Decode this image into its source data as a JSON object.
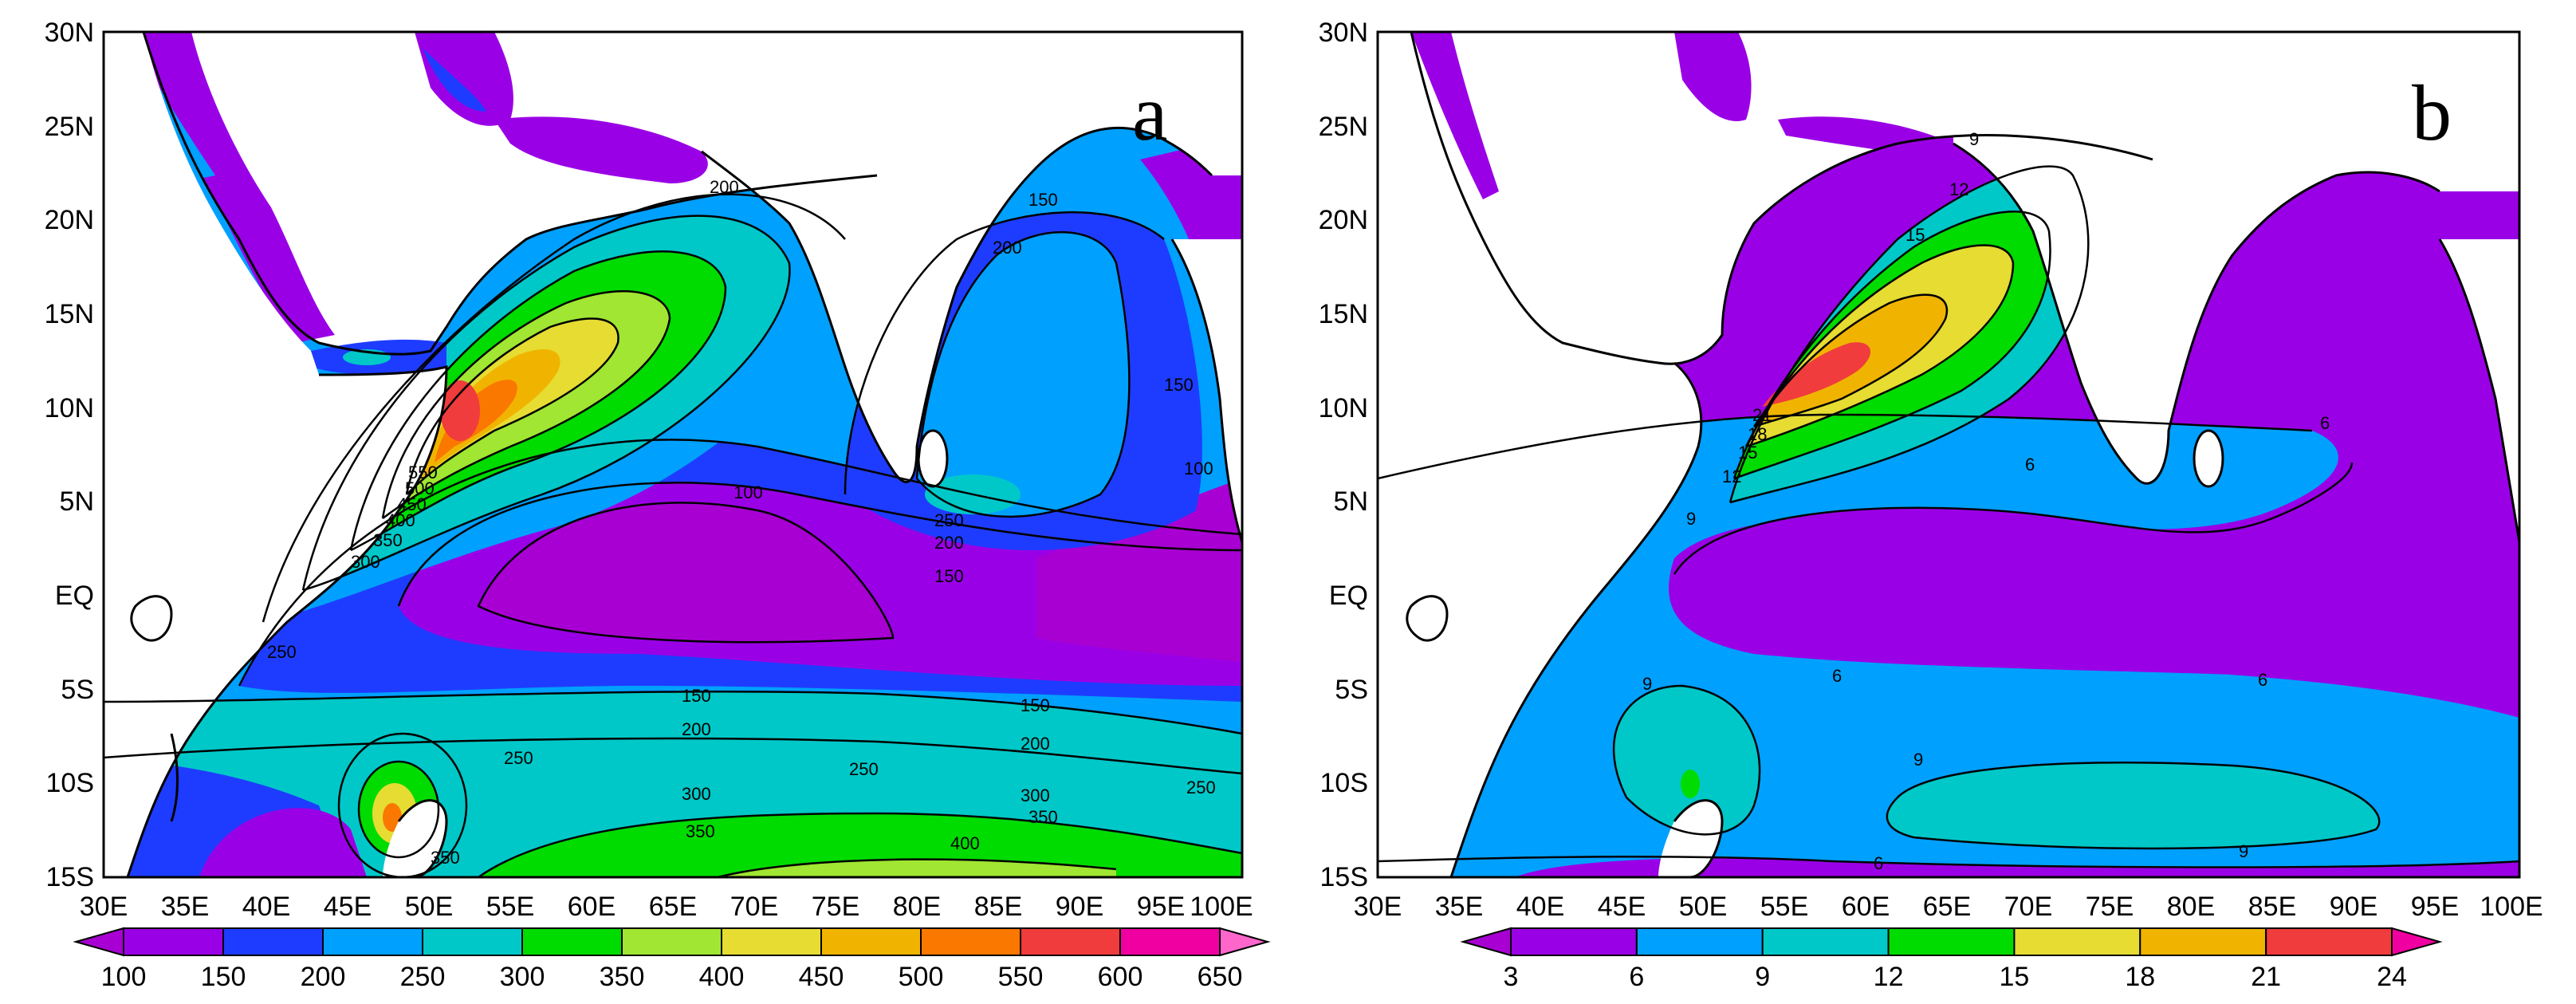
{
  "y_ticks": [
    "30N",
    "25N",
    "20N",
    "15N",
    "10N",
    "5N",
    "EQ",
    "5S",
    "10S",
    "15S"
  ],
  "x_ticks": [
    "30E",
    "35E",
    "40E",
    "45E",
    "50E",
    "55E",
    "60E",
    "65E",
    "70E",
    "75E",
    "80E",
    "85E",
    "90E",
    "95E",
    "100E"
  ],
  "panels": [
    {
      "tag": "a",
      "colorbar": {
        "labels": [
          "100",
          "150",
          "200",
          "250",
          "300",
          "350",
          "400",
          "450",
          "500",
          "550",
          "600",
          "650"
        ],
        "colors": [
          "#a800d2",
          "#9a00e6",
          "#1e3cff",
          "#00a0ff",
          "#00c8c8",
          "#00dc00",
          "#a0e632",
          "#e6dc32",
          "#f0b400",
          "#fa7800",
          "#f03c3c",
          "#f000a0",
          "#ff66cc"
        ]
      },
      "contour_labels": [
        "200",
        "150",
        "200",
        "150",
        "100",
        "100",
        "550",
        "500",
        "450",
        "400",
        "350",
        "300",
        "250",
        "250",
        "200",
        "150",
        "150",
        "200",
        "250",
        "250",
        "300",
        "350",
        "400",
        "150",
        "200",
        "300",
        "350",
        "250",
        "350"
      ]
    },
    {
      "tag": "b",
      "colorbar": {
        "labels": [
          "3",
          "6",
          "9",
          "12",
          "15",
          "18",
          "21",
          "24"
        ],
        "colors": [
          "#a800d2",
          "#9a00e6",
          "#00a0ff",
          "#00c8c8",
          "#00dc00",
          "#e6dc32",
          "#f0b400",
          "#f03c3c",
          "#f000a0"
        ]
      },
      "contour_labels": [
        "9",
        "12",
        "15",
        "21",
        "18",
        "15",
        "12",
        "9",
        "6",
        "6",
        "6",
        "6",
        "9",
        "9",
        "9",
        "6"
      ]
    }
  ]
}
